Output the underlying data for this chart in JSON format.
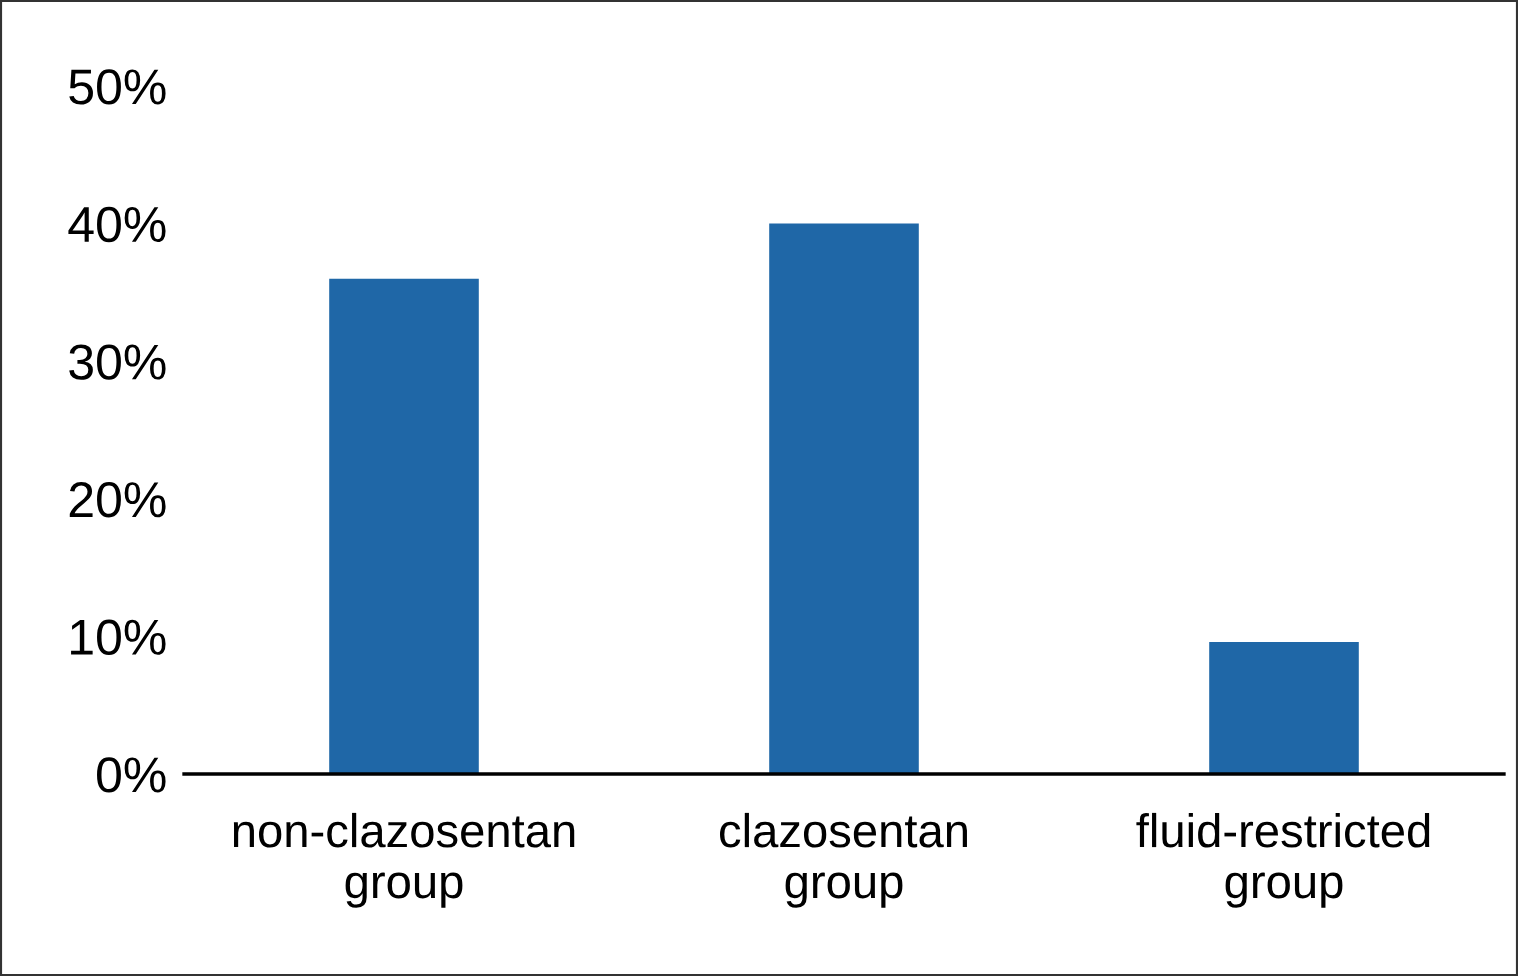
{
  "chart_data": {
    "type": "bar",
    "categories": [
      "non-clazosentan\ngroup",
      "clazosentan\ngroup",
      "fluid-restricted\ngroup"
    ],
    "values": [
      36,
      40,
      9.6
    ],
    "color": "#1f67a7",
    "ylim": [
      0,
      50
    ],
    "yticks": [
      {
        "value": 0,
        "label": "0%"
      },
      {
        "value": 10,
        "label": "10%"
      },
      {
        "value": 20,
        "label": "20%"
      },
      {
        "value": 30,
        "label": "30%"
      },
      {
        "value": 40,
        "label": "40%"
      },
      {
        "value": 50,
        "label": "50%"
      }
    ],
    "grid": false
  }
}
